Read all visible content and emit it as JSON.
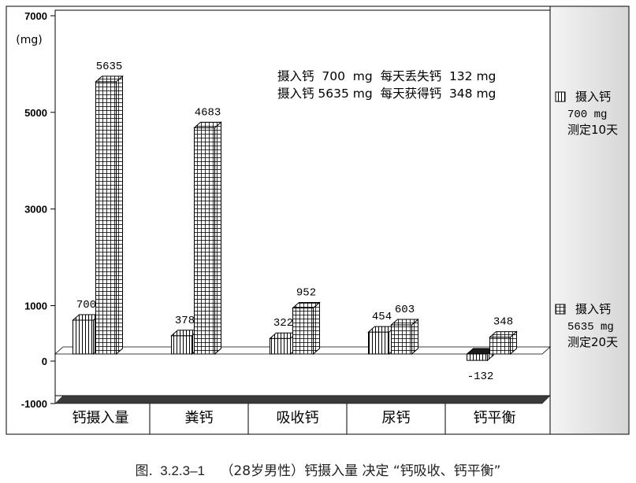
{
  "chart_data": {
    "type": "bar",
    "title": "",
    "ylabel": "(mg)",
    "xlabel": "",
    "ylim": [
      -1000,
      7000
    ],
    "yticks": [
      {
        "value": 7000,
        "label": "7000"
      },
      {
        "value": 5000,
        "label": "5000"
      },
      {
        "value": 3000,
        "label": "3000"
      },
      {
        "value": 1000,
        "label": "1000"
      },
      {
        "value": 0,
        "label": "0"
      },
      {
        "value": -1000,
        "label": "-1000"
      }
    ],
    "categories": [
      "钙摄入量",
      "粪钙",
      "吸收钙",
      "尿钙",
      "钙平衡"
    ],
    "series": [
      {
        "name": "摄入钙 700 mg 测定10天",
        "legend_lines": [
          "摄入钙",
          "700 mg",
          "测定10天"
        ],
        "pattern": "vertical-lines",
        "values": [
          700,
          378,
          322,
          454,
          -132
        ]
      },
      {
        "name": "摄入钙 5635 mg 测定20天",
        "legend_lines": [
          "摄入钙",
          "5635 mg",
          "测定20天"
        ],
        "pattern": "grid",
        "values": [
          5635,
          4683,
          952,
          603,
          348
        ]
      }
    ],
    "data_labels": [
      [
        "700",
        "378",
        "322",
        "454",
        "-132"
      ],
      [
        "5635",
        "4683",
        "952",
        "603",
        "348"
      ]
    ],
    "annotations": [
      "摄入钙  700  mg  每天丢失钙  132 mg",
      "摄入钙 5635 mg  每天获得钙  348 mg"
    ],
    "legend_position": "right",
    "grid": false,
    "colors": {
      "bar_fill": "#ffffff",
      "bar_line": "#000000",
      "floor": "#3a3a3a",
      "legend_panel": "#e8e8e8"
    }
  },
  "caption": {
    "prefix": "图.",
    "number": "3.2.3–1",
    "text": "（28岁男性）钙摄入量 决定 “钙吸收、钙平衡”"
  }
}
